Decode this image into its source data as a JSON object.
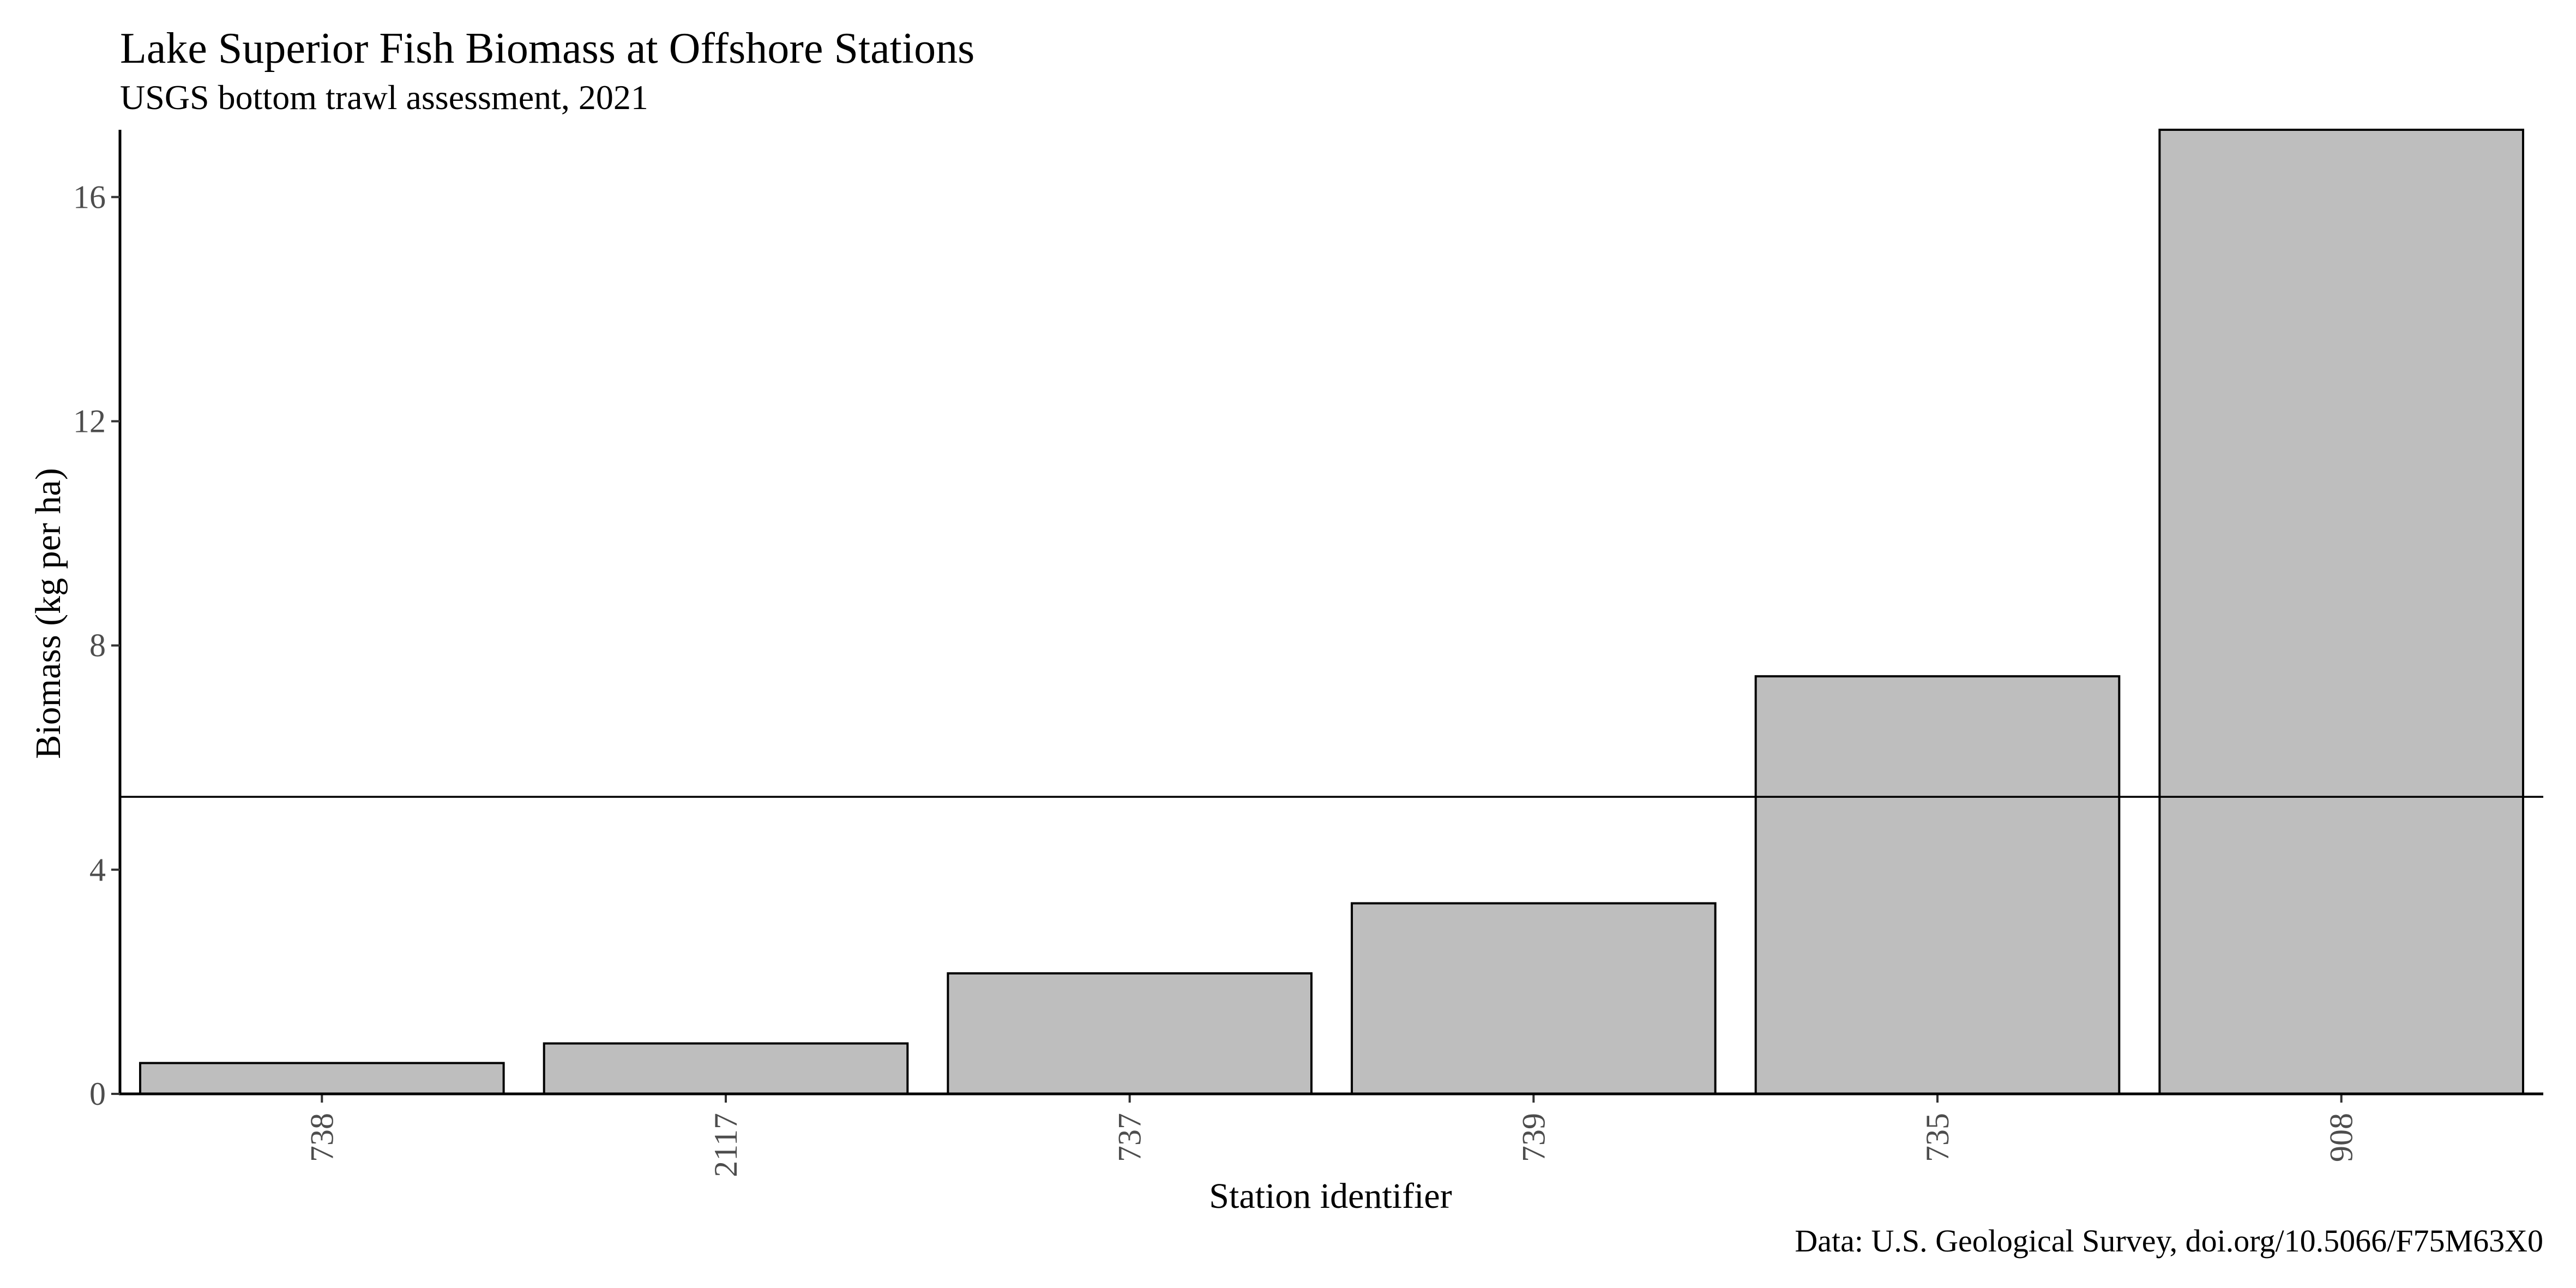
{
  "chart_data": {
    "type": "bar",
    "title": "Lake Superior Fish Biomass at Offshore Stations",
    "subtitle": "USGS bottom trawl assessment, 2021",
    "xlabel": "Station identifier",
    "ylabel": "Biomass (kg per ha)",
    "caption": "Data: U.S. Geological Survey, doi.org/10.5066/F75M63X0",
    "categories": [
      "738",
      "2117",
      "737",
      "739",
      "735",
      "908"
    ],
    "values": [
      0.55,
      0.9,
      2.15,
      3.4,
      7.45,
      17.2
    ],
    "reference_line": 5.3,
    "ylim": [
      0,
      17.2
    ],
    "y_ticks": [
      0,
      4,
      8,
      12,
      16
    ],
    "grid": false,
    "bar_fill": "#bebebe",
    "bar_stroke": "#000000"
  }
}
